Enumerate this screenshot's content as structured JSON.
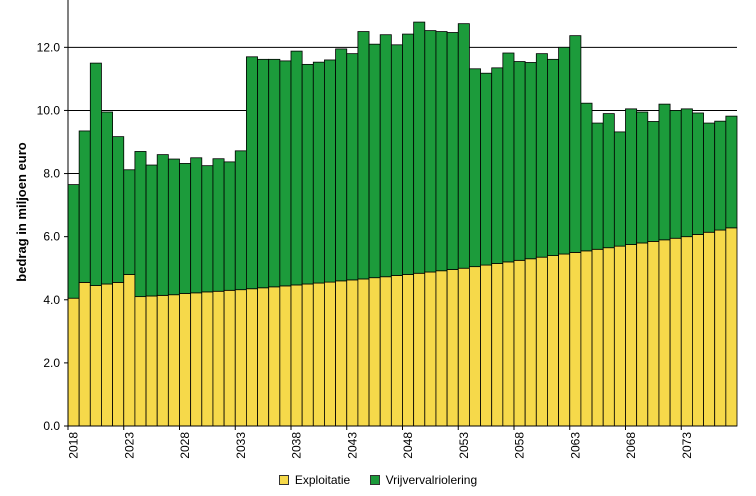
{
  "chart_data": {
    "type": "bar",
    "stacked": true,
    "ylabel": "bedrag in miljoen euro",
    "xlabel": "",
    "ylim": [
      0,
      13.5
    ],
    "yticks": [
      "0.0",
      "2.0",
      "4.0",
      "6.0",
      "8.0",
      "10.0",
      "12.0"
    ],
    "categories": [
      2018,
      2019,
      2020,
      2021,
      2022,
      2023,
      2024,
      2025,
      2026,
      2027,
      2028,
      2029,
      2030,
      2031,
      2032,
      2033,
      2034,
      2035,
      2036,
      2037,
      2038,
      2039,
      2040,
      2041,
      2042,
      2043,
      2044,
      2045,
      2046,
      2047,
      2048,
      2049,
      2050,
      2051,
      2052,
      2053,
      2054,
      2055,
      2056,
      2057,
      2058,
      2059,
      2060,
      2061,
      2062,
      2063,
      2064,
      2065,
      2066,
      2067,
      2068,
      2069,
      2070,
      2071,
      2072,
      2073,
      2074,
      2075,
      2076,
      2077
    ],
    "xtick_labels": [
      "2018",
      "2023",
      "2028",
      "2033",
      "2038",
      "2043",
      "2048",
      "2053",
      "2058",
      "2063",
      "2068",
      "2073"
    ],
    "legend_position": "bottom",
    "series": [
      {
        "name": "Exploitatie",
        "color": "#f6d94a",
        "values": [
          4.05,
          4.55,
          4.45,
          4.5,
          4.55,
          4.8,
          4.1,
          4.12,
          4.14,
          4.16,
          4.2,
          4.22,
          4.25,
          4.27,
          4.3,
          4.32,
          4.35,
          4.38,
          4.41,
          4.44,
          4.47,
          4.5,
          4.53,
          4.56,
          4.6,
          4.63,
          4.66,
          4.7,
          4.73,
          4.77,
          4.8,
          4.84,
          4.88,
          4.92,
          4.96,
          5.0,
          5.05,
          5.1,
          5.15,
          5.2,
          5.25,
          5.3,
          5.35,
          5.4,
          5.45,
          5.5,
          5.55,
          5.6,
          5.65,
          5.7,
          5.75,
          5.8,
          5.85,
          5.9,
          5.95,
          6.0,
          6.07,
          6.14,
          6.21,
          6.28
        ]
      },
      {
        "name": "Vrijvervalriolering",
        "color": "#1c9b3b",
        "values": [
          3.6,
          4.8,
          7.05,
          5.45,
          4.62,
          3.32,
          4.6,
          4.15,
          4.46,
          4.3,
          4.12,
          4.28,
          4.0,
          4.2,
          4.07,
          4.4,
          7.35,
          7.24,
          7.21,
          7.13,
          7.41,
          6.96,
          7.0,
          7.04,
          7.35,
          7.17,
          7.84,
          7.4,
          7.67,
          7.31,
          7.62,
          7.96,
          7.65,
          7.58,
          7.51,
          7.75,
          6.27,
          6.08,
          6.2,
          6.62,
          6.3,
          6.22,
          6.45,
          6.22,
          6.55,
          6.87,
          4.68,
          4.0,
          4.25,
          3.62,
          4.3,
          4.15,
          3.8,
          4.3,
          4.05,
          4.05,
          3.85,
          3.46,
          3.45,
          3.54
        ]
      }
    ]
  }
}
